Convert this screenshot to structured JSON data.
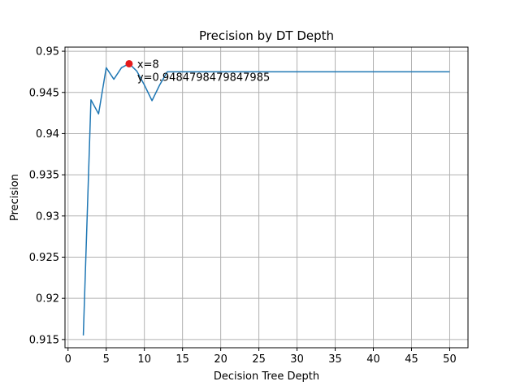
{
  "chart_data": {
    "type": "line",
    "title": "Precision by DT Depth",
    "xlabel": "Decision Tree Depth",
    "ylabel": "Precision",
    "xlim": [
      -0.4,
      52.4
    ],
    "ylim": [
      0.914,
      0.9505
    ],
    "grid": true,
    "xticks": [
      0,
      5,
      10,
      15,
      20,
      25,
      30,
      35,
      40,
      45,
      50
    ],
    "yticks": [
      0.915,
      0.92,
      0.925,
      0.93,
      0.935,
      0.94,
      0.945,
      0.95
    ],
    "ytick_labels": [
      "0.915",
      "0.92",
      "0.925",
      "0.93",
      "0.935",
      "0.94",
      "0.945",
      "0.95"
    ],
    "series": [
      {
        "color": "#1f77b4",
        "x": [
          2,
          3,
          4,
          5,
          6,
          7,
          8,
          9,
          10,
          11,
          12,
          13,
          14,
          15,
          16,
          17,
          18,
          19,
          20,
          21,
          22,
          23,
          24,
          25,
          26,
          27,
          28,
          29,
          30,
          31,
          32,
          33,
          34,
          35,
          36,
          37,
          38,
          39,
          40,
          41,
          42,
          43,
          44,
          45,
          46,
          47,
          48,
          49,
          50
        ],
        "y": [
          0.9155,
          0.9441,
          0.9424,
          0.948,
          0.9466,
          0.948,
          0.9485,
          0.9476,
          0.9459,
          0.944,
          0.9459,
          0.9475,
          0.9475,
          0.9475,
          0.9475,
          0.9475,
          0.9475,
          0.9475,
          0.9475,
          0.9475,
          0.9475,
          0.9475,
          0.9475,
          0.9475,
          0.9475,
          0.9475,
          0.9475,
          0.9475,
          0.9475,
          0.9475,
          0.9475,
          0.9475,
          0.9475,
          0.9475,
          0.9475,
          0.9475,
          0.9475,
          0.9475,
          0.9475,
          0.9475,
          0.9475,
          0.9475,
          0.9475,
          0.9475,
          0.9475,
          0.9475,
          0.9475,
          0.9475,
          0.9475
        ]
      }
    ],
    "highlight": {
      "x": 8,
      "y": 0.9484798479847985,
      "color": "#e41a1c",
      "label_x": "x=8",
      "label_y": "y=0.9484798479847985"
    }
  }
}
